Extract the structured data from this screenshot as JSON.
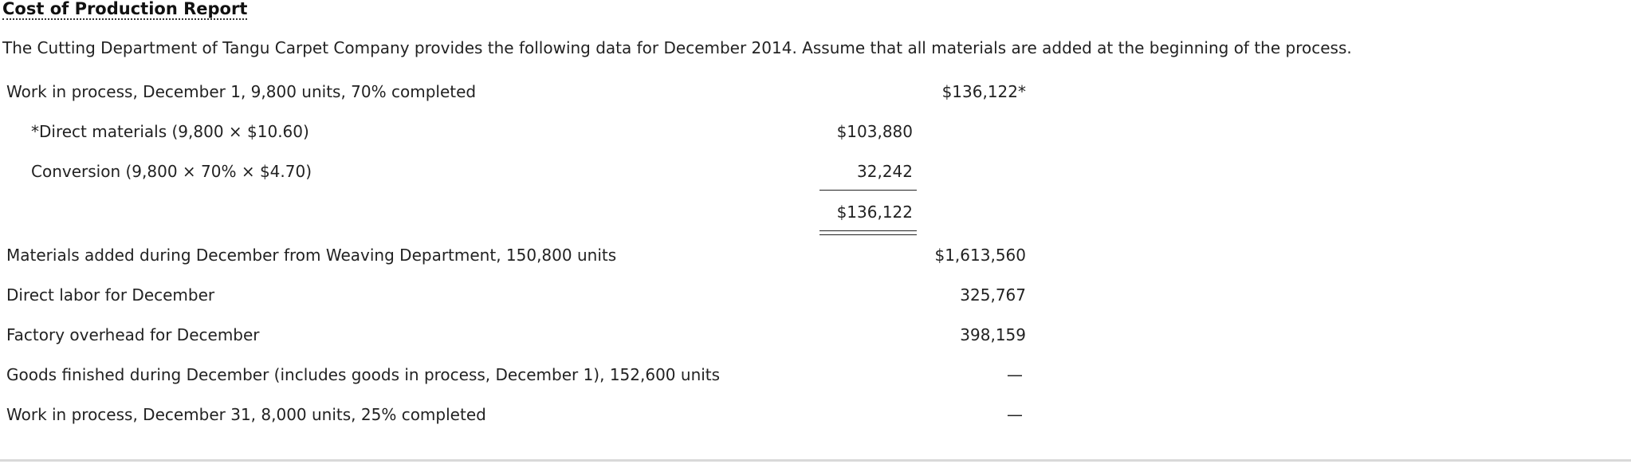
{
  "report": {
    "title": "Cost of Production Report",
    "intro": "The Cutting Department of Tangu Carpet Company provides the following data for December 2014. Assume that all materials are added at the beginning of the process."
  },
  "rows": [
    {
      "label": "Work in process, December 1, 9,800 units, 70% completed",
      "col_a": "",
      "col_b": "$136,122*"
    },
    {
      "label": "*Direct materials (9,800 × $10.60)",
      "col_a": "$103,880",
      "col_b": ""
    },
    {
      "label": "Conversion (9,800 × 70% × $4.70)",
      "col_a": "32,242",
      "col_b": ""
    },
    {
      "label": "",
      "col_a": "$136,122",
      "col_b": ""
    },
    {
      "label": "Materials added during December from Weaving Department, 150,800 units",
      "col_a": "",
      "col_b": "$1,613,560"
    },
    {
      "label": "Direct labor for December",
      "col_a": "",
      "col_b": "325,767"
    },
    {
      "label": "Factory overhead for December",
      "col_a": "",
      "col_b": "398,159"
    },
    {
      "label": "Goods finished during December (includes goods in process, December 1), 152,600 units",
      "col_a": "",
      "col_b": "—"
    },
    {
      "label": "Work in process, December 31, 8,000 units, 25% completed",
      "col_a": "",
      "col_b": "—"
    }
  ]
}
